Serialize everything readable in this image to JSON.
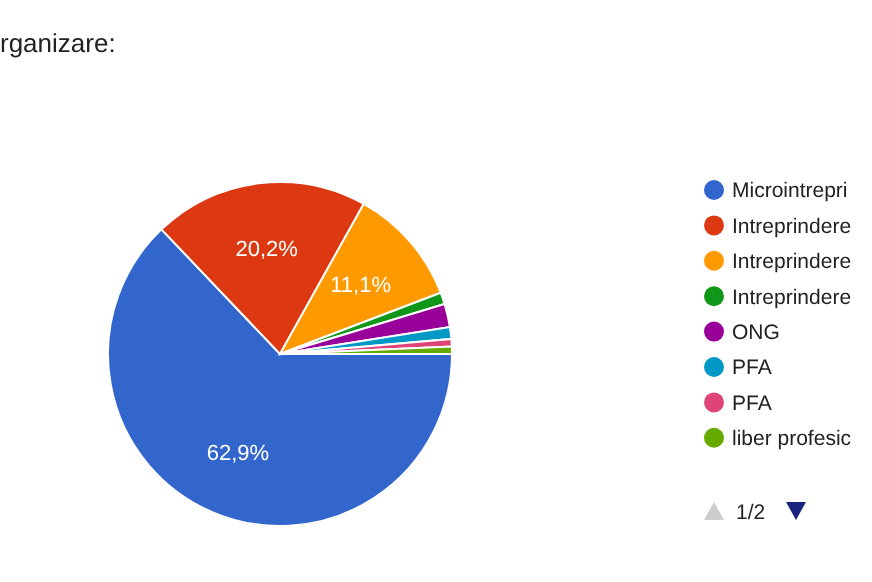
{
  "chart_data": {
    "type": "pie",
    "title": "rganizare:",
    "categories": [
      "Microintrepri",
      "Intreprindere",
      "Intreprindere",
      "Intreprindere",
      "ONG",
      "PFA",
      "PFA",
      "liber profesic"
    ],
    "values": [
      62.9,
      20.2,
      11.1,
      1.1,
      2.2,
      1.1,
      0.7,
      0.7
    ],
    "colors": [
      "#3366cc",
      "#dc3912",
      "#ff9900",
      "#109618",
      "#990099",
      "#0099c6",
      "#dd4477",
      "#66aa00"
    ],
    "value_labels": [
      "62,9%",
      "20,2%",
      "11,1%",
      null,
      null,
      null,
      null,
      null
    ],
    "legend": "right",
    "annotations": [
      "1/2"
    ]
  }
}
